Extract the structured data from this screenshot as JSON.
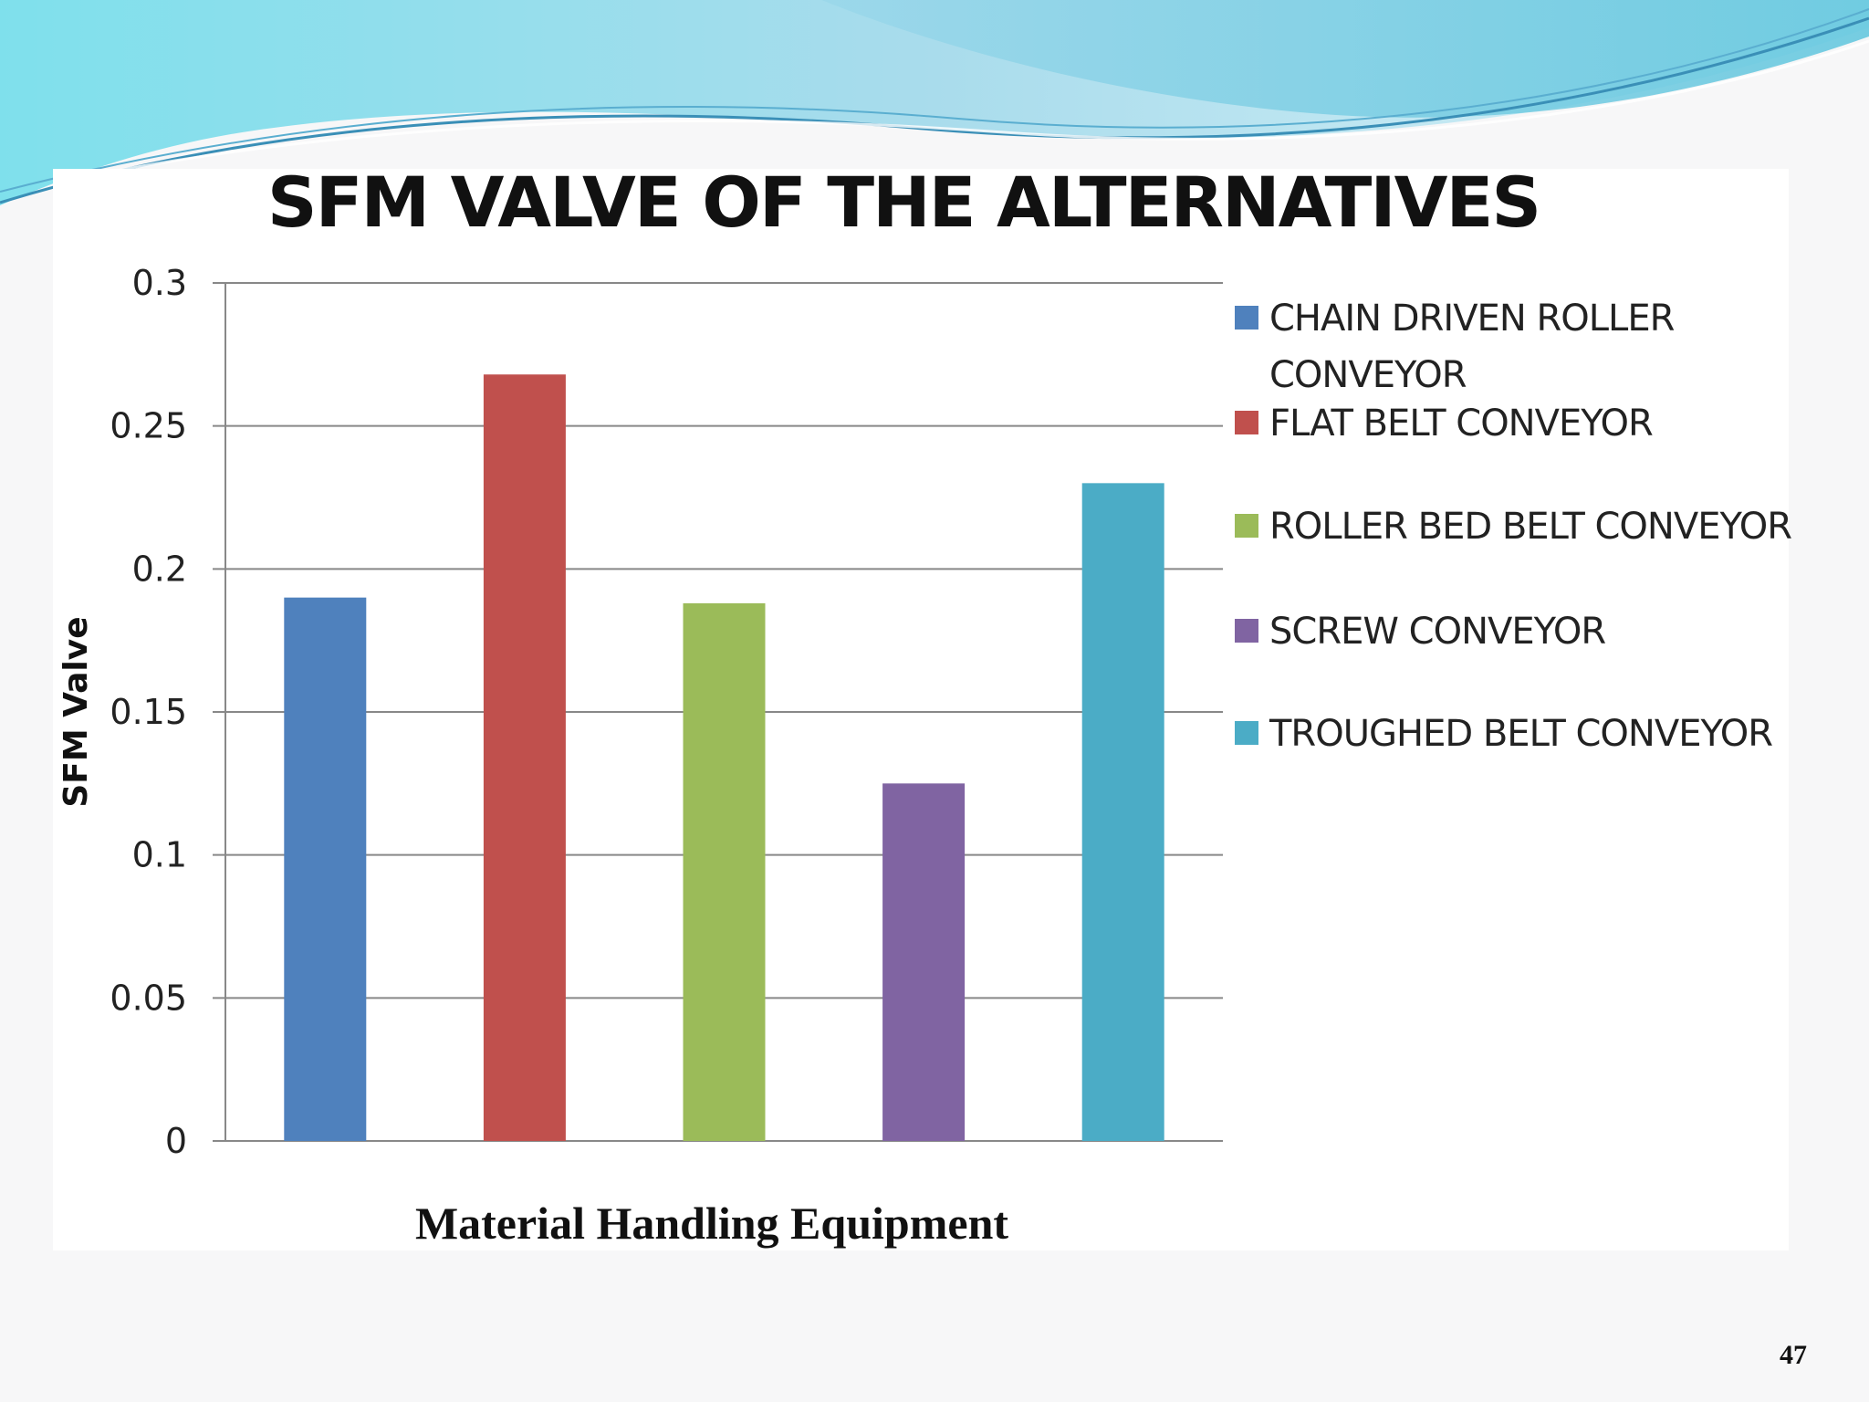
{
  "slide": {
    "page_number": "47"
  },
  "theme": {
    "wave_light": "#9fe3ee",
    "wave_mid": "#6fc8de",
    "wave_dark": "#3a8fb7"
  },
  "chart_data": {
    "type": "bar",
    "title": "SFM VALVE OF THE ALTERNATIVES",
    "xlabel": "Material Handling Equipment",
    "ylabel": "SFM Valve",
    "ylim": [
      0,
      0.3
    ],
    "yticks": [
      "0",
      "0.05",
      "0.1",
      "0.15",
      "0.2",
      "0.25",
      "0.3"
    ],
    "grid": true,
    "legend_position": "right",
    "series": [
      {
        "name": "CHAIN DRIVEN ROLLER CONVEYOR",
        "legend_lines": [
          "CHAIN DRIVEN ROLLER",
          "CONVEYOR"
        ],
        "value": 0.19,
        "color": "#4f81bd"
      },
      {
        "name": "FLAT BELT  CONVEYOR",
        "legend_lines": [
          "FLAT BELT  CONVEYOR"
        ],
        "value": 0.268,
        "color": "#c0504d"
      },
      {
        "name": "ROLLER BED BELT CONVEYOR",
        "legend_lines": [
          "ROLLER BED BELT CONVEYOR"
        ],
        "value": 0.188,
        "color": "#9bbb59"
      },
      {
        "name": "SCREW CONVEYOR",
        "legend_lines": [
          "SCREW CONVEYOR"
        ],
        "value": 0.125,
        "color": "#8064a2"
      },
      {
        "name": "TROUGHED BELT CONVEYOR",
        "legend_lines": [
          "TROUGHED BELT CONVEYOR"
        ],
        "value": 0.23,
        "color": "#4bacc6"
      }
    ]
  }
}
